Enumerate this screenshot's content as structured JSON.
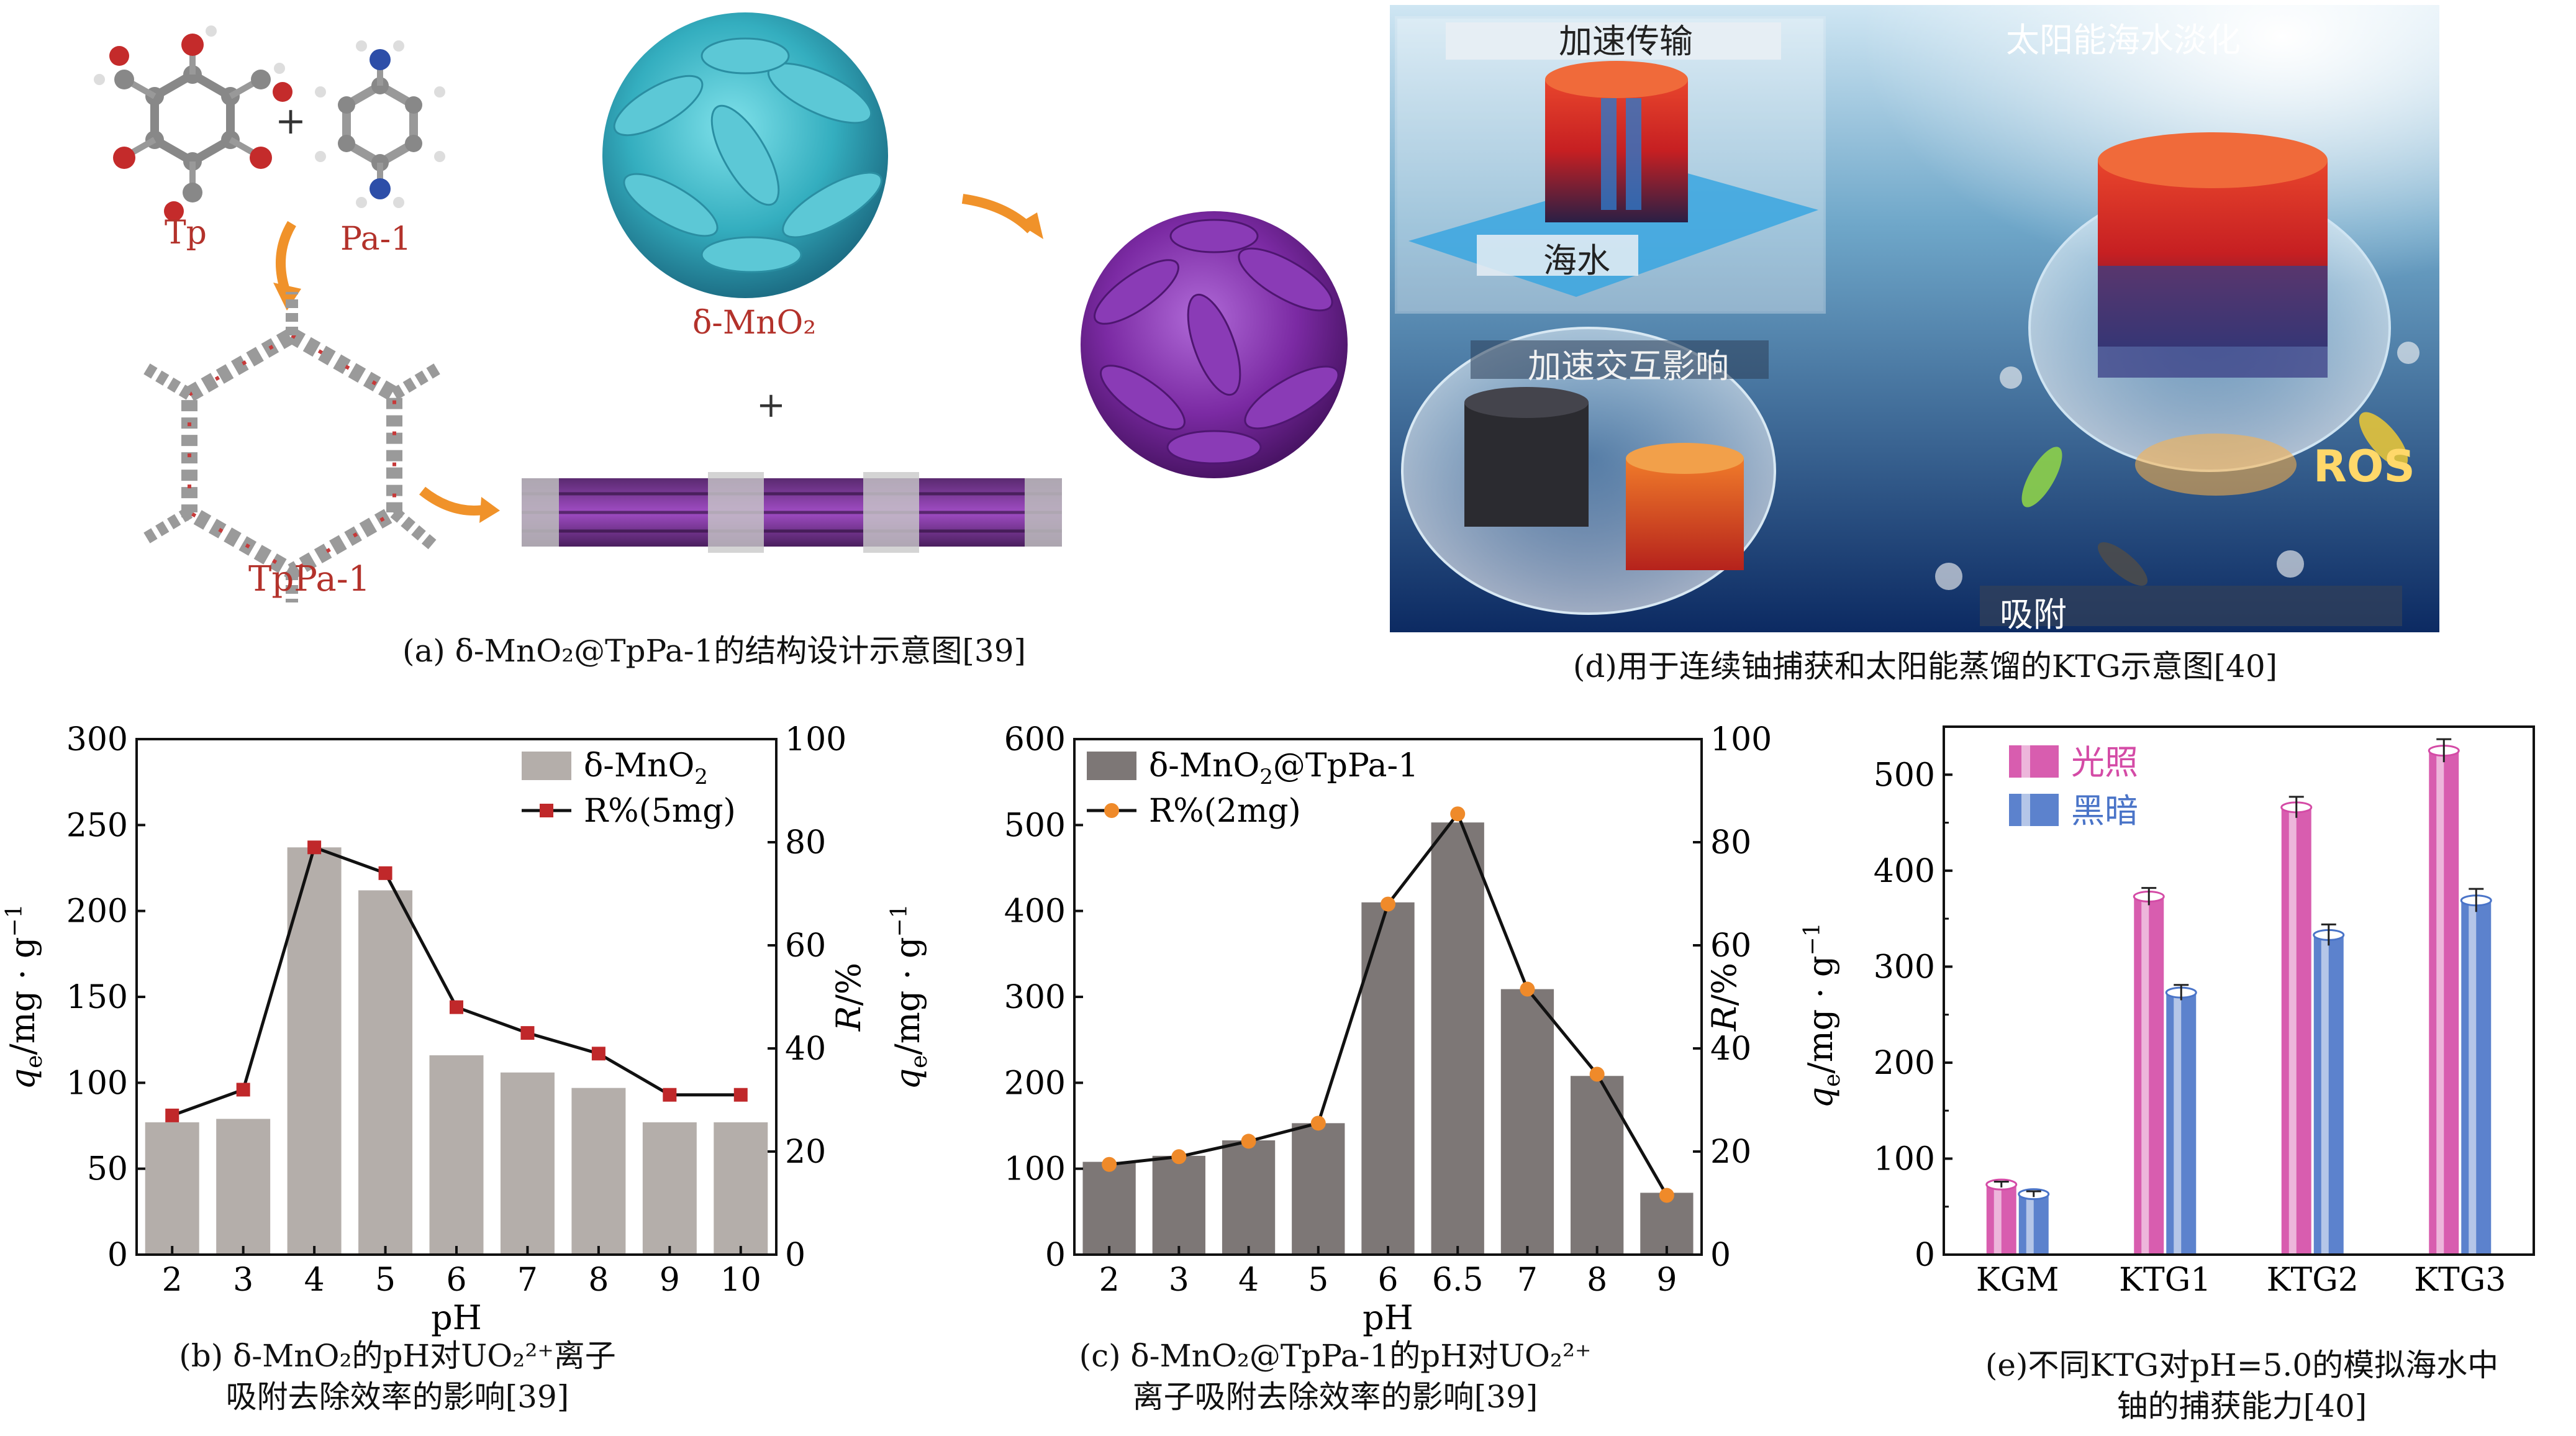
{
  "panel_a": {
    "label_tp": "Tp",
    "label_pa": "Pa-1",
    "plus1": "+",
    "label_mno2": "δ-MnO₂",
    "plus2": "+",
    "label_tppa": "TpPa-1",
    "caption": "(a) δ-MnO₂@TpPa-1的结构设计示意图[39]"
  },
  "panel_d": {
    "title_accel_transport": "加速传输",
    "title_solar": "太阳能海水淡化",
    "label_seawater": "海水",
    "title_accel_interact": "加速交互影响",
    "label_ros": "ROS",
    "label_adsorb": "吸附",
    "caption": "(d)用于连续铀捕获和太阳能蒸馏的KTG示意图[40]"
  },
  "panel_b_caption": [
    "(b) δ-MnO₂的pH对UO₂²⁺离子",
    "吸附去除效率的影响[39]"
  ],
  "panel_c_caption": [
    "(c) δ-MnO₂@TpPa-1的pH对UO₂²⁺",
    "离子吸附去除效率的影响[39]"
  ],
  "panel_e_caption": [
    "(e)不同KTG对pH=5.0的模拟海水中",
    "铀的捕获能力[40]"
  ],
  "chart_data": [
    {
      "type": "bar",
      "panel": "b",
      "categories": [
        "2",
        "3",
        "4",
        "5",
        "6",
        "7",
        "8",
        "9",
        "10"
      ],
      "xlabel": "pH",
      "ylabel": "qe/mg·g⁻¹",
      "ylabel_right": "R/%",
      "ylim": [
        0,
        300
      ],
      "ylim_right": [
        0,
        100
      ],
      "yticks": [
        0,
        50,
        100,
        150,
        200,
        250,
        300
      ],
      "yticks_right": [
        0,
        20,
        40,
        60,
        80,
        100
      ],
      "legend_position": "top-right",
      "series": [
        {
          "name": "δ-MnO₂",
          "kind": "bar",
          "color": "#b4aeaa",
          "values": [
            77,
            79,
            237,
            212,
            116,
            106,
            97,
            77,
            77
          ]
        },
        {
          "name": "R%(5mg)",
          "kind": "line",
          "axis": "right",
          "color": "#c0282a",
          "values": [
            27,
            32,
            79,
            74,
            48,
            43,
            39,
            31,
            31
          ]
        }
      ]
    },
    {
      "type": "bar",
      "panel": "c",
      "categories": [
        "2",
        "3",
        "4",
        "5",
        "6",
        "6.5",
        "7",
        "8",
        "9"
      ],
      "xlabel": "pH",
      "ylabel": "qe/mg·g⁻¹",
      "ylabel_right": "R/%",
      "ylim": [
        0,
        600
      ],
      "ylim_right": [
        0,
        100
      ],
      "yticks": [
        0,
        100,
        200,
        300,
        400,
        500,
        600
      ],
      "yticks_right": [
        0,
        20,
        40,
        60,
        80,
        100
      ],
      "legend_position": "top-left",
      "series": [
        {
          "name": "δ-MnO₂@TpPa-1",
          "kind": "bar",
          "color": "#7d7776",
          "values": [
            108,
            115,
            133,
            153,
            410,
            503,
            309,
            208,
            72
          ]
        },
        {
          "name": "R%(2mg)",
          "kind": "line",
          "axis": "right",
          "color": "#ef8a2a",
          "values": [
            17.5,
            19,
            22,
            25.5,
            68,
            85.5,
            51.5,
            35,
            11.5
          ]
        }
      ]
    },
    {
      "type": "bar",
      "panel": "e",
      "categories": [
        "KGM",
        "KTG1",
        "KTG2",
        "KTG3"
      ],
      "ylabel": "qe/mg·g⁻¹",
      "ylim": [
        0,
        550
      ],
      "yticks": [
        0,
        100,
        200,
        300,
        400,
        500
      ],
      "legend_position": "top-left",
      "series": [
        {
          "name": "光照",
          "color": "#d44ba6",
          "values": [
            73,
            373,
            466,
            525
          ],
          "errors": [
            3,
            9,
            11,
            12
          ]
        },
        {
          "name": "黑暗",
          "color": "#4a74c8",
          "values": [
            63,
            273,
            333,
            369
          ],
          "errors": [
            3,
            8,
            11,
            12
          ]
        }
      ]
    }
  ]
}
